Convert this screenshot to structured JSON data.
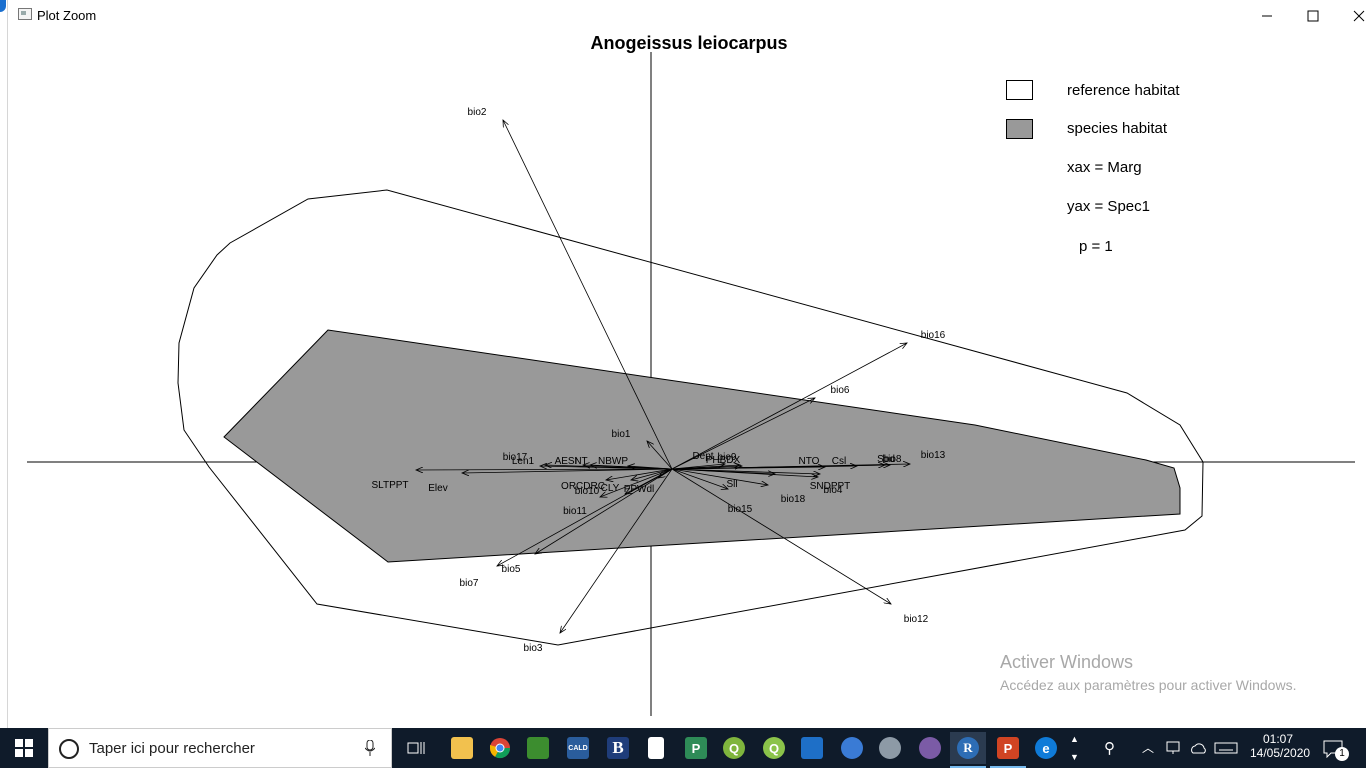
{
  "window": {
    "title": "Plot Zoom"
  },
  "chart_data": {
    "type": "scatter",
    "title": "Anogeissus leiocarpus",
    "variables": [
      "bio2",
      "bio16",
      "bio6",
      "bio1",
      "bio17",
      "Len1",
      "AESI",
      "NT",
      "NBWP",
      "Dept",
      "bio9",
      "PHBDX",
      "NTO",
      "Csl",
      "Sbd",
      "bio8",
      "bio13",
      "SLTPPT",
      "Elev",
      "ORCDRC",
      "bio10",
      "CLY",
      "PPWdl",
      "Sll",
      "SNDPPT",
      "bio4",
      "bio18",
      "bio15",
      "bio11",
      "bio5",
      "bio7",
      "bio12",
      "bio3"
    ],
    "legend": [
      {
        "label": "reference habitat",
        "color": "#ffffff"
      },
      {
        "label": "species habitat",
        "color": "#999999"
      }
    ],
    "annotations": {
      "xax": "xax = Marg",
      "yax": "yax = Spec1",
      "p": "p = 1"
    }
  },
  "watermark": {
    "line1": "Activer Windows",
    "line2": "Accédez aux paramètres pour activer Windows."
  },
  "taskbar": {
    "search_placeholder": "Taper ici pour rechercher",
    "apps": [
      "task-view",
      "file-explorer",
      "chrome",
      "calc-app",
      "cald-app",
      "b-app",
      "doc-app",
      "excel-app",
      "qgis-app",
      "qgis-app-2",
      "window-app",
      "globe-app",
      "disk-app",
      "purple-app",
      "r-app",
      "powerpoint-app",
      "edge-app"
    ],
    "time": "01:07",
    "date": "14/05/2020",
    "notification_count": "1"
  }
}
